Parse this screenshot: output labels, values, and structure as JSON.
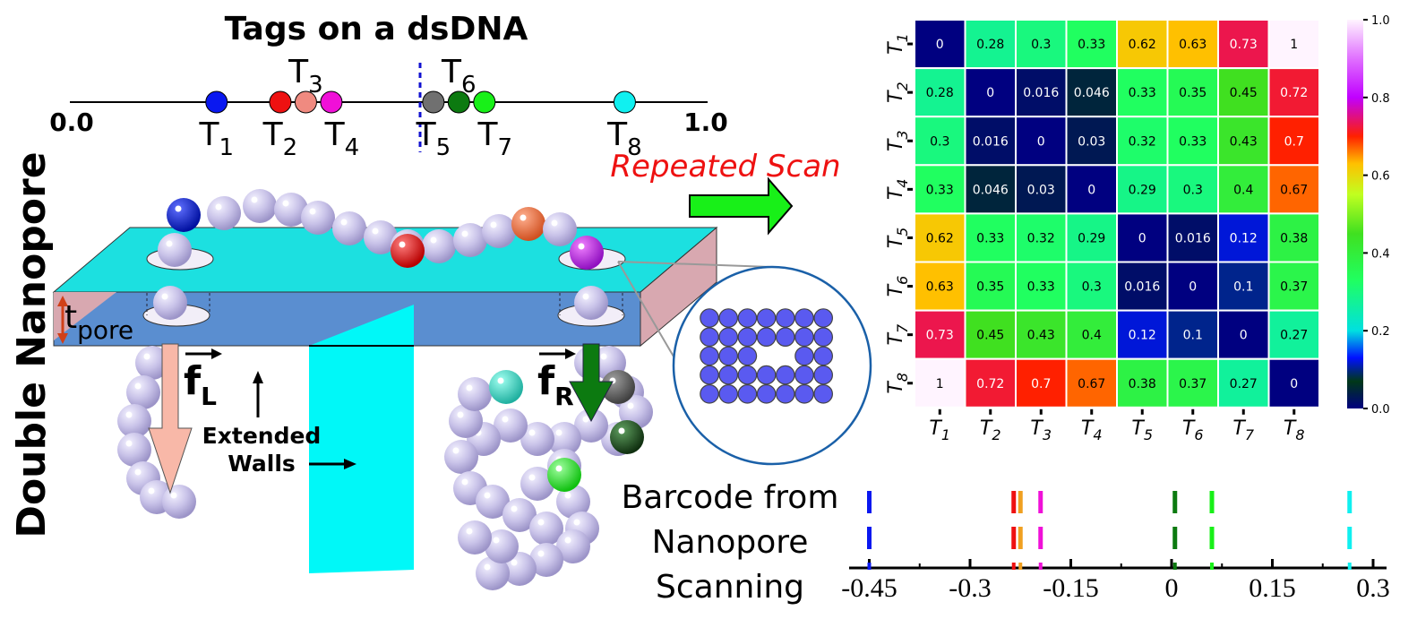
{
  "diagram": {
    "vertical_title": "Double Nanopore",
    "tags_title": "Tags on a dsDNA",
    "line_start": "0.0",
    "line_end": "1.0",
    "tags": [
      {
        "name": "T",
        "sub": "1",
        "pos": 0.23,
        "color": "#0a18f0"
      },
      {
        "name": "T",
        "sub": "2",
        "pos": 0.33,
        "color": "#ee1111"
      },
      {
        "name": "T",
        "sub": "3",
        "pos": 0.37,
        "color": "#f08a80"
      },
      {
        "name": "T",
        "sub": "4",
        "pos": 0.41,
        "color": "#f010d8"
      },
      {
        "name": "T",
        "sub": "5",
        "pos": 0.57,
        "color": "#707070"
      },
      {
        "name": "T",
        "sub": "6",
        "pos": 0.61,
        "color": "#0c7a10"
      },
      {
        "name": "T",
        "sub": "7",
        "pos": 0.65,
        "color": "#18f018"
      },
      {
        "name": "T",
        "sub": "8",
        "pos": 0.87,
        "color": "#10f0f0"
      }
    ],
    "repeated_scan": "Repeated Scan",
    "t_pore": {
      "main": "t",
      "sub": "pore"
    },
    "force_left": {
      "main": "f",
      "sub": "L"
    },
    "force_right": {
      "main": "f",
      "sub": "R"
    },
    "extended_walls": [
      "Extended",
      "Walls"
    ],
    "barcode_caption": [
      "Barcode from",
      "Nanopore",
      "Scanning"
    ]
  },
  "chart_data": [
    {
      "type": "heatmap",
      "row_labels": [
        "T1",
        "T2",
        "T3",
        "T4",
        "T5",
        "T6",
        "T7",
        "T8"
      ],
      "col_labels": [
        "T1",
        "T2",
        "T3",
        "T4",
        "T5",
        "T6",
        "T7",
        "T8"
      ],
      "values": [
        [
          0,
          0.28,
          0.3,
          0.33,
          0.62,
          0.63,
          0.73,
          1
        ],
        [
          0.28,
          0,
          0.016,
          0.046,
          0.33,
          0.35,
          0.45,
          0.72
        ],
        [
          0.3,
          0.016,
          0,
          0.03,
          0.32,
          0.33,
          0.43,
          0.7
        ],
        [
          0.33,
          0.046,
          0.03,
          0,
          0.29,
          0.3,
          0.4,
          0.67
        ],
        [
          0.62,
          0.33,
          0.32,
          0.29,
          0,
          0.016,
          0.12,
          0.38
        ],
        [
          0.63,
          0.35,
          0.33,
          0.3,
          0.016,
          0,
          0.1,
          0.37
        ],
        [
          0.73,
          0.45,
          0.43,
          0.4,
          0.12,
          0.1,
          0,
          0.27
        ],
        [
          1,
          0.72,
          0.7,
          0.67,
          0.38,
          0.37,
          0.27,
          0
        ]
      ],
      "colorbar": {
        "ticks": [
          "0.0",
          "0.2",
          "0.4",
          "0.6",
          "0.8",
          "1.0"
        ],
        "range": [
          0,
          1
        ]
      }
    },
    {
      "type": "scatter",
      "x_ticks": [
        "-0.45",
        "-0.3",
        "-0.15",
        "0",
        "0.15",
        "0.3"
      ],
      "x_tick_values": [
        -0.45,
        -0.3,
        -0.15,
        0,
        0.15,
        0.3
      ],
      "xlim": [
        -0.48,
        0.32
      ],
      "rows": 2,
      "marks": [
        {
          "x": -0.45,
          "color": "#0a18f0"
        },
        {
          "x": -0.235,
          "color": "#ee1111"
        },
        {
          "x": -0.225,
          "color": "#f0a020"
        },
        {
          "x": -0.195,
          "color": "#f010d8"
        },
        {
          "x": 0.005,
          "color": "#0c7a10"
        },
        {
          "x": 0.06,
          "color": "#18f018"
        },
        {
          "x": 0.265,
          "color": "#10f0f0"
        }
      ]
    }
  ]
}
